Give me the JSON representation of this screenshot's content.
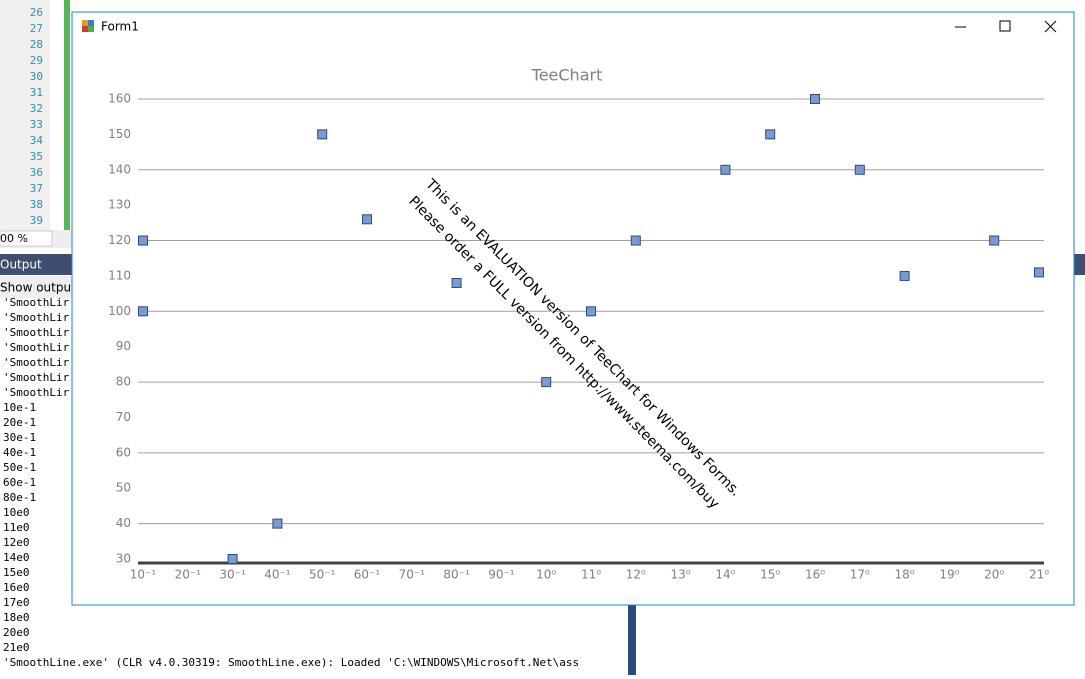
{
  "ide": {
    "line_numbers": [
      26,
      27,
      28,
      29,
      30,
      31,
      32,
      33,
      34,
      35,
      36,
      37,
      38,
      39
    ],
    "zoom": "00 %",
    "output_title": "Output",
    "output_filter": "Show output f",
    "output_lines": [
      "'SmoothLir",
      "'SmoothLir",
      "'SmoothLir",
      "'SmoothLir",
      "'SmoothLir",
      "'SmoothLir",
      "'SmoothLir",
      "10e-1",
      "20e-1",
      "30e-1",
      "40e-1",
      "50e-1",
      "60e-1",
      "80e-1",
      "10e0",
      "11e0",
      "12e0",
      "14e0",
      "15e0",
      "16e0",
      "17e0",
      "18e0",
      "20e0",
      "21e0",
      "'SmoothLine.exe' (CLR v4.0.30319: SmoothLine.exe): Loaded 'C:\\WINDOWS\\Microsoft.Net\\ass"
    ]
  },
  "window": {
    "title": "Form1"
  },
  "watermark": [
    "This is an EVALUATION version of TeeChart for Windows Forms.",
    "Please order a FULL version from http://www.steema.com/buy"
  ],
  "chart_data": {
    "type": "scatter",
    "title": "TeeChart",
    "categories": [
      "10⁻¹",
      "20⁻¹",
      "30⁻¹",
      "40⁻¹",
      "50⁻¹",
      "60⁻¹",
      "70⁻¹",
      "80⁻¹",
      "90⁻¹",
      "10⁰",
      "11⁰",
      "12⁰",
      "13⁰",
      "14⁰",
      "15⁰",
      "16⁰",
      "17⁰",
      "18⁰",
      "19⁰",
      "20⁰",
      "21⁰"
    ],
    "x": [
      "10⁻¹",
      "10⁻¹",
      "30⁻¹",
      "40⁻¹",
      "50⁻¹",
      "60⁻¹",
      "80⁻¹",
      "10⁰",
      "11⁰",
      "12⁰",
      "14⁰",
      "15⁰",
      "16⁰",
      "17⁰",
      "18⁰",
      "20⁰",
      "21⁰"
    ],
    "values": [
      120,
      100,
      30,
      40,
      150,
      126,
      108,
      80,
      100,
      120,
      140,
      150,
      160,
      140,
      110,
      120,
      111
    ],
    "color": "#7b9ad1",
    "ylim": [
      30,
      160
    ],
    "yticks": [
      30,
      40,
      50,
      60,
      70,
      80,
      90,
      100,
      110,
      120,
      130,
      140,
      150,
      160
    ],
    "ygrid": [
      40,
      60,
      80,
      100,
      120,
      140,
      160
    ],
    "grid": true
  }
}
